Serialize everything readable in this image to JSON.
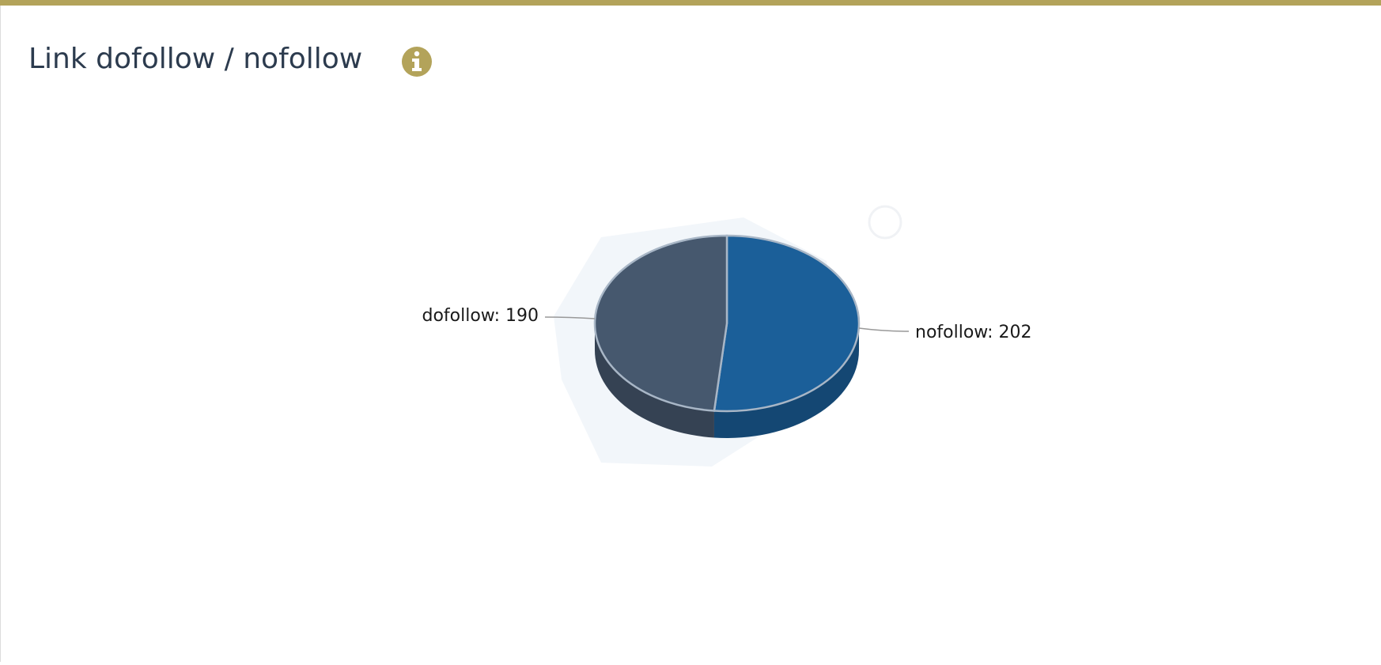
{
  "chart_data": {
    "type": "pie",
    "title": "Link dofollow / nofollow",
    "categories": [
      "dofollow",
      "nofollow"
    ],
    "values": [
      190,
      202
    ],
    "value_labels": [
      "dofollow: 190",
      "nofollow: 202"
    ],
    "colors": [
      "#46586e",
      "#1b5f99"
    ]
  }
}
